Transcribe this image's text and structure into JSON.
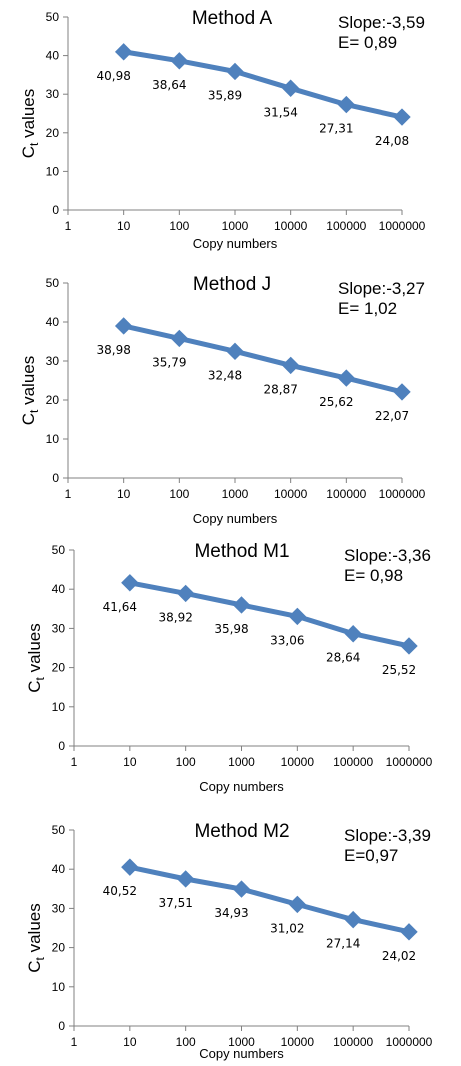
{
  "chart_data": [
    {
      "type": "line",
      "title": "Method A",
      "annotations": [
        "Slope:-3,59",
        "E= 0,89"
      ],
      "xlabel": "Copy numbers",
      "ylabel": "C",
      "ylabel_sub": "t",
      "ylabel_rest": " values",
      "x_scale": "log",
      "xticks": [
        "1",
        "10",
        "100",
        "1000",
        "10000",
        "100000",
        "1000000"
      ],
      "yticks": [
        "0",
        "10",
        "20",
        "30",
        "40",
        "50"
      ],
      "ylim": [
        0,
        50
      ],
      "x": [
        10,
        100,
        1000,
        10000,
        100000,
        1000000
      ],
      "values": [
        40.98,
        38.64,
        35.89,
        31.54,
        27.31,
        24.08
      ],
      "labels": [
        "40,98",
        "38,64",
        "35,89",
        "31,54",
        "27,31",
        "24,08"
      ],
      "color": "#4f81bd",
      "grid": false
    },
    {
      "type": "line",
      "title": "Method J",
      "annotations": [
        "Slope:-3,27",
        "E= 1,02"
      ],
      "xlabel": "Copy numbers",
      "ylabel": "C",
      "ylabel_sub": "t",
      "ylabel_rest": " values",
      "x_scale": "log",
      "xticks": [
        "1",
        "10",
        "100",
        "1000",
        "10000",
        "100000",
        "1000000"
      ],
      "yticks": [
        "0",
        "10",
        "20",
        "30",
        "40",
        "50"
      ],
      "ylim": [
        0,
        50
      ],
      "x": [
        10,
        100,
        1000,
        10000,
        100000,
        1000000
      ],
      "values": [
        38.98,
        35.79,
        32.48,
        28.87,
        25.62,
        22.07
      ],
      "labels": [
        "38,98",
        "35,79",
        "32,48",
        "28,87",
        "25,62",
        "22,07"
      ],
      "color": "#4f81bd",
      "grid": false
    },
    {
      "type": "line",
      "title": "Method M1",
      "annotations": [
        "Slope:-3,36",
        "E= 0,98"
      ],
      "xlabel": "Copy numbers",
      "ylabel": "C",
      "ylabel_sub": "t",
      "ylabel_rest": " values",
      "x_scale": "log",
      "xticks": [
        "1",
        "10",
        "100",
        "1000",
        "10000",
        "100000",
        "1000000"
      ],
      "yticks": [
        "0",
        "10",
        "20",
        "30",
        "40",
        "50"
      ],
      "ylim": [
        0,
        50
      ],
      "x": [
        10,
        100,
        1000,
        10000,
        100000,
        1000000
      ],
      "values": [
        41.64,
        38.92,
        35.98,
        33.06,
        28.64,
        25.52
      ],
      "labels": [
        "41,64",
        "38,92",
        "35,98",
        "33,06",
        "28,64",
        "25,52"
      ],
      "color": "#4f81bd",
      "grid": false
    },
    {
      "type": "line",
      "title": "Method M2",
      "annotations": [
        "Slope:-3,39",
        "E=0,97"
      ],
      "xlabel": "Copy numbers",
      "ylabel": "C",
      "ylabel_sub": "t",
      "ylabel_rest": " values",
      "x_scale": "log",
      "xticks": [
        "1",
        "10",
        "100",
        "1000",
        "10000",
        "100000",
        "1000000"
      ],
      "yticks": [
        "0",
        "10",
        "20",
        "30",
        "40",
        "50"
      ],
      "ylim": [
        0,
        50
      ],
      "x": [
        10,
        100,
        1000,
        10000,
        100000,
        1000000
      ],
      "values": [
        40.52,
        37.51,
        34.93,
        31.02,
        27.14,
        24.02
      ],
      "labels": [
        "40,52",
        "37,51",
        "34,93",
        "31,02",
        "27,14",
        "24,02"
      ],
      "color": "#4f81bd",
      "grid": false
    }
  ]
}
